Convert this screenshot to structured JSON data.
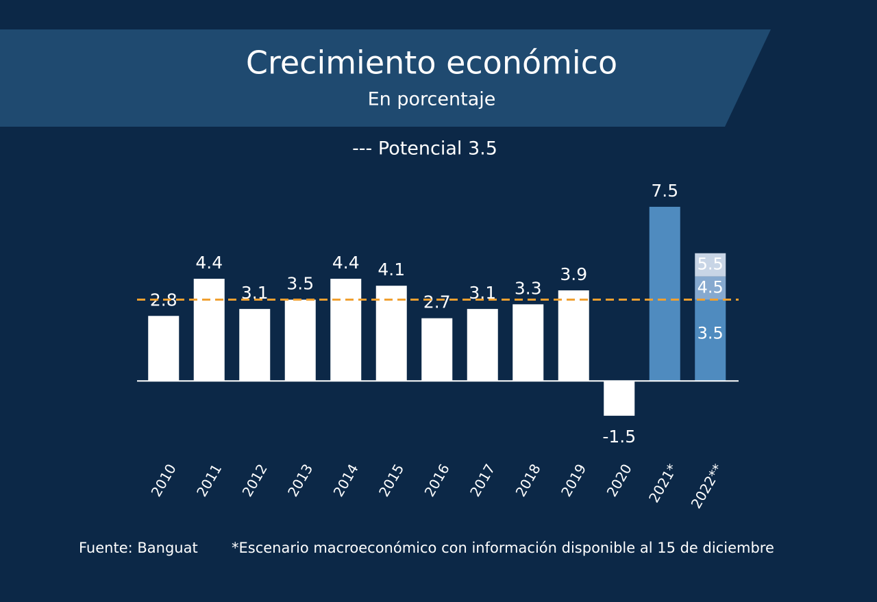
{
  "chart_data": {
    "type": "bar",
    "title": "Crecimiento económico",
    "subtitle": "En porcentaje",
    "categories": [
      "2010",
      "2011",
      "2012",
      "2013",
      "2014",
      "2015",
      "2016",
      "2017",
      "2018",
      "2019",
      "2020",
      "2021*",
      "2022**"
    ],
    "values": [
      2.8,
      4.4,
      3.1,
      3.5,
      4.4,
      4.1,
      2.7,
      3.1,
      3.3,
      3.9,
      -1.5,
      7.5,
      null
    ],
    "colors": [
      "#ffffff",
      "#ffffff",
      "#ffffff",
      "#ffffff",
      "#ffffff",
      "#ffffff",
      "#ffffff",
      "#ffffff",
      "#ffffff",
      "#ffffff",
      "#ffffff",
      "#4f8bbf",
      null
    ],
    "forecast_values": [
      3.5,
      4.5,
      5.5
    ],
    "forecast_colors": [
      "#4f8bbf",
      "#86a9cf",
      "#c8d5e6"
    ],
    "reference_line": {
      "value": 3.5,
      "label": "--- Potencial 3.5",
      "color": "#f0a030"
    },
    "ylim": [
      -2,
      8
    ],
    "source": "Fuente: Banguat",
    "note": "*Escenario macroeconómico con información disponible al 15 de diciembre"
  }
}
